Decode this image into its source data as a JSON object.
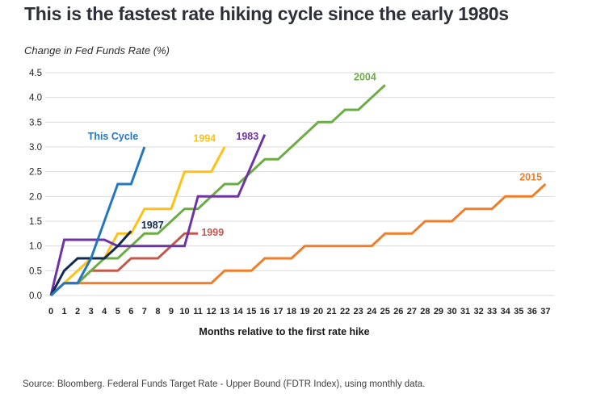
{
  "footer": {
    "source": "Source: Bloomberg. Federal Funds Target Rate - Upper Bound (FDTR Index), using monthly data."
  },
  "chart_data": {
    "type": "line",
    "title": "This is the fastest rate hiking cycle since the early 1980s",
    "y_axis_title": "Change in Fed Funds Rate (%)",
    "x_axis_title": "Months relative to the first rate hike",
    "ylim": [
      0,
      4.5
    ],
    "ytick_labels": [
      "0.0",
      "0.5",
      "1.0",
      "1.5",
      "2.0",
      "2.5",
      "3.0",
      "3.5",
      "4.0",
      "4.5"
    ],
    "xtick_labels": [
      0,
      1,
      2,
      3,
      4,
      5,
      6,
      7,
      8,
      9,
      10,
      11,
      12,
      13,
      14,
      15,
      16,
      17,
      18,
      19,
      20,
      21,
      22,
      23,
      24,
      25,
      26,
      27,
      28,
      29,
      30,
      31,
      32,
      33,
      34,
      35,
      36,
      37
    ],
    "grid": true,
    "legend_position": "inline-labels",
    "colors": {
      "grid": "#dbdbdb",
      "tick_text": "#1f1f1f",
      "title_text": "#2e3039"
    },
    "series": [
      {
        "name": "2015",
        "color": "#ef7d29",
        "label": {
          "text": "2015",
          "x": 35.9,
          "y": 2.4
        },
        "values": [
          0,
          0.25,
          0.25,
          0.25,
          0.25,
          0.25,
          0.25,
          0.25,
          0.25,
          0.25,
          0.25,
          0.25,
          0.25,
          0.5,
          0.5,
          0.5,
          0.75,
          0.75,
          0.75,
          1.0,
          1.0,
          1.0,
          1.0,
          1.0,
          1.0,
          1.25,
          1.25,
          1.25,
          1.5,
          1.5,
          1.5,
          1.75,
          1.75,
          1.75,
          2.0,
          2.0,
          2.0,
          2.25
        ]
      },
      {
        "name": "1999",
        "color": "#c3584f",
        "label": {
          "text": "1999",
          "x": 12.1,
          "y": 1.28
        },
        "values": [
          0,
          0.25,
          0.25,
          0.5,
          0.5,
          0.5,
          0.75,
          0.75,
          0.75,
          1.0,
          1.25,
          1.25
        ]
      },
      {
        "name": "2004",
        "color": "#6cac44",
        "label": {
          "text": "2004",
          "x": 23.5,
          "y": 4.42
        },
        "values": [
          0,
          0.25,
          0.25,
          0.5,
          0.75,
          0.75,
          1.0,
          1.25,
          1.25,
          1.5,
          1.75,
          1.75,
          2.0,
          2.25,
          2.25,
          2.5,
          2.75,
          2.75,
          3.0,
          3.25,
          3.5,
          3.5,
          3.75,
          3.75,
          4.0,
          4.25
        ]
      },
      {
        "name": "1994",
        "color": "#ffc113",
        "label": {
          "text": "1994",
          "x": 11.5,
          "y": 3.18
        },
        "values": [
          0,
          0.25,
          0.5,
          0.75,
          0.75,
          1.25,
          1.25,
          1.75,
          1.75,
          1.75,
          2.5,
          2.5,
          2.5,
          3.0
        ]
      },
      {
        "name": "1983",
        "color": "#6e34a3",
        "label": {
          "text": "1983",
          "x": 14.7,
          "y": 3.22
        },
        "values": [
          0,
          1.125,
          1.125,
          1.125,
          1.125,
          1.0,
          1.0,
          1.0,
          1.0,
          1.0,
          1.0,
          2.0,
          2.0,
          2.0,
          2.0,
          2.625,
          3.25
        ]
      },
      {
        "name": "1987",
        "color": "#122a52",
        "label": {
          "text": "1987",
          "x": 7.6,
          "y": 1.43
        },
        "values": [
          0,
          0.5,
          0.75,
          0.75,
          0.75,
          1.0,
          1.3
        ]
      },
      {
        "name": "This Cycle",
        "color": "#2376c0",
        "label": {
          "text": "This Cycle",
          "x": 4.65,
          "y": 3.22
        },
        "values": [
          0,
          0.25,
          0.25,
          0.75,
          1.5,
          2.25,
          2.25,
          3.0
        ]
      }
    ]
  }
}
